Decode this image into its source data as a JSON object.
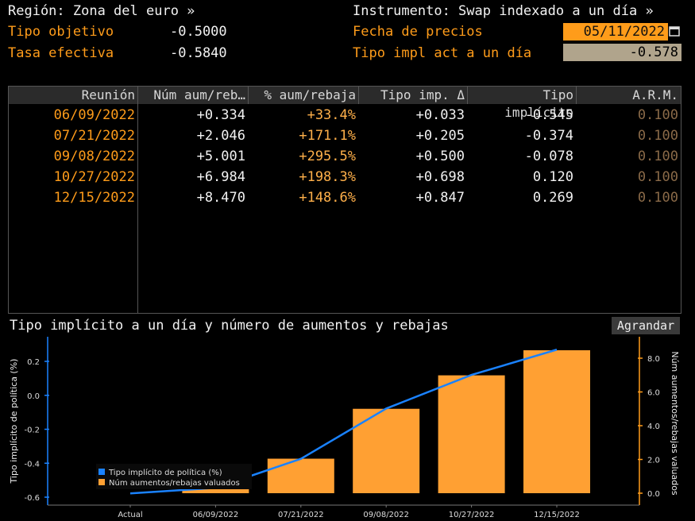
{
  "header": {
    "region_label": "Región: Zona del euro »",
    "instrument_label": "Instrumento: Swap indexado a un día »",
    "target_label": "Tipo objetivo",
    "target_value": "-0.5000",
    "effective_label": "Tasa efectiva",
    "effective_value": "-0.5840",
    "price_date_label": "Fecha de precios",
    "price_date_value": "05/11/2022",
    "implied_rate_label": "Tipo impl act a un día",
    "implied_rate_value": "-0.578"
  },
  "table": {
    "columns": [
      "Reunión",
      "Núm aum/reb…",
      "% aum/rebaja",
      "Tipo imp. Δ",
      "Tipo implícito",
      "A.R.M."
    ],
    "rows": [
      [
        "06/09/2022",
        "+0.334",
        "+33.4%",
        "+0.033",
        "-0.545",
        "0.100"
      ],
      [
        "07/21/2022",
        "+2.046",
        "+171.1%",
        "+0.205",
        "-0.374",
        "0.100"
      ],
      [
        "09/08/2022",
        "+5.001",
        "+295.5%",
        "+0.500",
        "-0.078",
        "0.100"
      ],
      [
        "10/27/2022",
        "+6.984",
        "+198.3%",
        "+0.698",
        "0.120",
        "0.100"
      ],
      [
        "12/15/2022",
        "+8.470",
        "+148.6%",
        "+0.847",
        "0.269",
        "0.100"
      ]
    ]
  },
  "chart_title": "Tipo implícito a un día y número de aumentos y rebajas",
  "expand_button": "Agrandar",
  "chart_data": {
    "type": "bar",
    "categories": [
      "Actual",
      "06/09/2022",
      "07/21/2022",
      "09/08/2022",
      "10/27/2022",
      "12/15/2022"
    ],
    "series": [
      {
        "name": "Tipo implícito de política (%)",
        "type": "line",
        "axis": "left",
        "color": "#1a82ff",
        "values": [
          -0.578,
          -0.545,
          -0.374,
          -0.078,
          0.12,
          0.269
        ]
      },
      {
        "name": "Núm aumentos/rebajas valuados",
        "type": "bar",
        "axis": "right",
        "color": "#ffa033",
        "values": [
          0,
          0.334,
          2.046,
          5.001,
          6.984,
          8.47
        ]
      }
    ],
    "ylabel": "Tipo implícito de política (%)",
    "y2label": "Núm aumentos/rebajas valuados",
    "ylim": [
      -0.6,
      0.3
    ],
    "y2lim": [
      -0.25,
      8.9
    ],
    "yticks": [
      "0.2",
      "0.0",
      "-0.2",
      "-0.4",
      "-0.6"
    ],
    "y2ticks": [
      "8.0",
      "6.0",
      "4.0",
      "2.0",
      "0.0"
    ],
    "legend_position": "bottom-left",
    "grid": false
  }
}
